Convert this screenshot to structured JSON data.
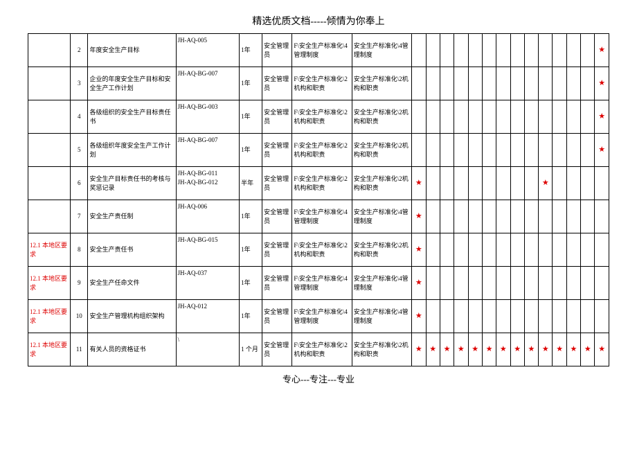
{
  "header_text": "精选优质文档-----倾情为你奉上",
  "footer_text": "专心---专注---专业",
  "star_char": "★",
  "region_label": "12.1 本地区要求",
  "columns": 22,
  "star_count": 14,
  "rows": [
    {
      "region": "",
      "num": "2",
      "name": "年度安全生产目标",
      "code": "JH-AQ-005",
      "freq": "1年",
      "mgr": "安全管理员",
      "path1": "F\\安全生产标准化\\4管理制度",
      "path2": "安全生产标准化\\4管理制度",
      "stars": [
        0,
        0,
        0,
        0,
        0,
        0,
        0,
        0,
        0,
        0,
        0,
        0,
        0,
        1
      ]
    },
    {
      "region": "",
      "num": "3",
      "name": "企业的年度安全生产目标和安全生产工作计划",
      "code": "JH-AQ-BG-007",
      "freq": "1年",
      "mgr": "安全管理员",
      "path1": "F\\安全生产标准化\\2机构和职责",
      "path2": "安全生产标准化\\2机构和职责",
      "stars": [
        0,
        0,
        0,
        0,
        0,
        0,
        0,
        0,
        0,
        0,
        0,
        0,
        0,
        1
      ]
    },
    {
      "region": "",
      "num": "4",
      "name": "各级组织的安全生产目标责任书",
      "code": "JH-AQ-BG-003",
      "freq": "1年",
      "mgr": "安全管理员",
      "path1": "F\\安全生产标准化\\2机构和职责",
      "path2": "安全生产标准化\\2机构和职责",
      "stars": [
        0,
        0,
        0,
        0,
        0,
        0,
        0,
        0,
        0,
        0,
        0,
        0,
        0,
        1
      ]
    },
    {
      "region": "",
      "num": "5",
      "name": "各级组织年度安全生产工作计划",
      "code": "JH-AQ-BG-007",
      "freq": "1年",
      "mgr": "安全管理员",
      "path1": "F\\安全生产标准化\\2机构和职责",
      "path2": "安全生产标准化\\2机构和职责",
      "stars": [
        0,
        0,
        0,
        0,
        0,
        0,
        0,
        0,
        0,
        0,
        0,
        0,
        0,
        1
      ]
    },
    {
      "region": "",
      "num": "6",
      "name": "安全生产目标责任书的考核与奖惩记录",
      "code": "JH-AQ-BG-011\nJH-AQ-BG-012",
      "freq": "半年",
      "mgr": "安全管理员",
      "path1": "F\\安全生产标准化\\2机构和职责",
      "path2": "安全生产标准化\\2机构和职责",
      "stars": [
        1,
        0,
        0,
        0,
        0,
        0,
        0,
        0,
        0,
        1,
        0,
        0,
        0,
        0
      ]
    },
    {
      "region": "",
      "num": "7",
      "name": "安全生产责任制",
      "code": "JH-AQ-006",
      "freq": "1年",
      "mgr": "安全管理员",
      "path1": "F\\安全生产标准化\\4管理制度",
      "path2": "安全生产标准化\\4管理制度",
      "stars": [
        1,
        0,
        0,
        0,
        0,
        0,
        0,
        0,
        0,
        0,
        0,
        0,
        0,
        0
      ]
    },
    {
      "region": "12.1 本地区要求",
      "num": "8",
      "name": "安全生产责任书",
      "code": "JH-AQ-BG-015",
      "freq": "1年",
      "mgr": "安全管理员",
      "path1": "F\\安全生产标准化\\2机构和职责",
      "path2": "安全生产标准化\\2机构和职责",
      "stars": [
        1,
        0,
        0,
        0,
        0,
        0,
        0,
        0,
        0,
        0,
        0,
        0,
        0,
        0
      ]
    },
    {
      "region": "12.1 本地区要求",
      "num": "9",
      "name": "安全生产任命文件",
      "code": "JH-AQ-037",
      "freq": "1年",
      "mgr": "安全管理员",
      "path1": "F\\安全生产标准化\\4管理制度",
      "path2": "安全生产标准化\\4管理制度",
      "stars": [
        1,
        0,
        0,
        0,
        0,
        0,
        0,
        0,
        0,
        0,
        0,
        0,
        0,
        0
      ]
    },
    {
      "region": "12.1 本地区要求",
      "num": "10",
      "name": "安全生产管理机构组织架构",
      "code": "JH-AQ-012",
      "freq": "1年",
      "mgr": "安全管理员",
      "path1": "F\\安全生产标准化\\4管理制度",
      "path2": "安全生产标准化\\4管理制度",
      "stars": [
        1,
        0,
        0,
        0,
        0,
        0,
        0,
        0,
        0,
        0,
        0,
        0,
        0,
        0
      ]
    },
    {
      "region": "12.1 本地区要求",
      "num": "11",
      "name": "有关人员的资格证书",
      "code": "\\",
      "freq": "1 个月",
      "mgr": "安全管理员",
      "path1": "F\\安全生产标准化\\2机构和职责",
      "path2": "安全生产标准化\\2机构和职责",
      "stars": [
        1,
        1,
        1,
        1,
        1,
        1,
        1,
        1,
        1,
        1,
        1,
        1,
        1,
        1
      ]
    }
  ]
}
